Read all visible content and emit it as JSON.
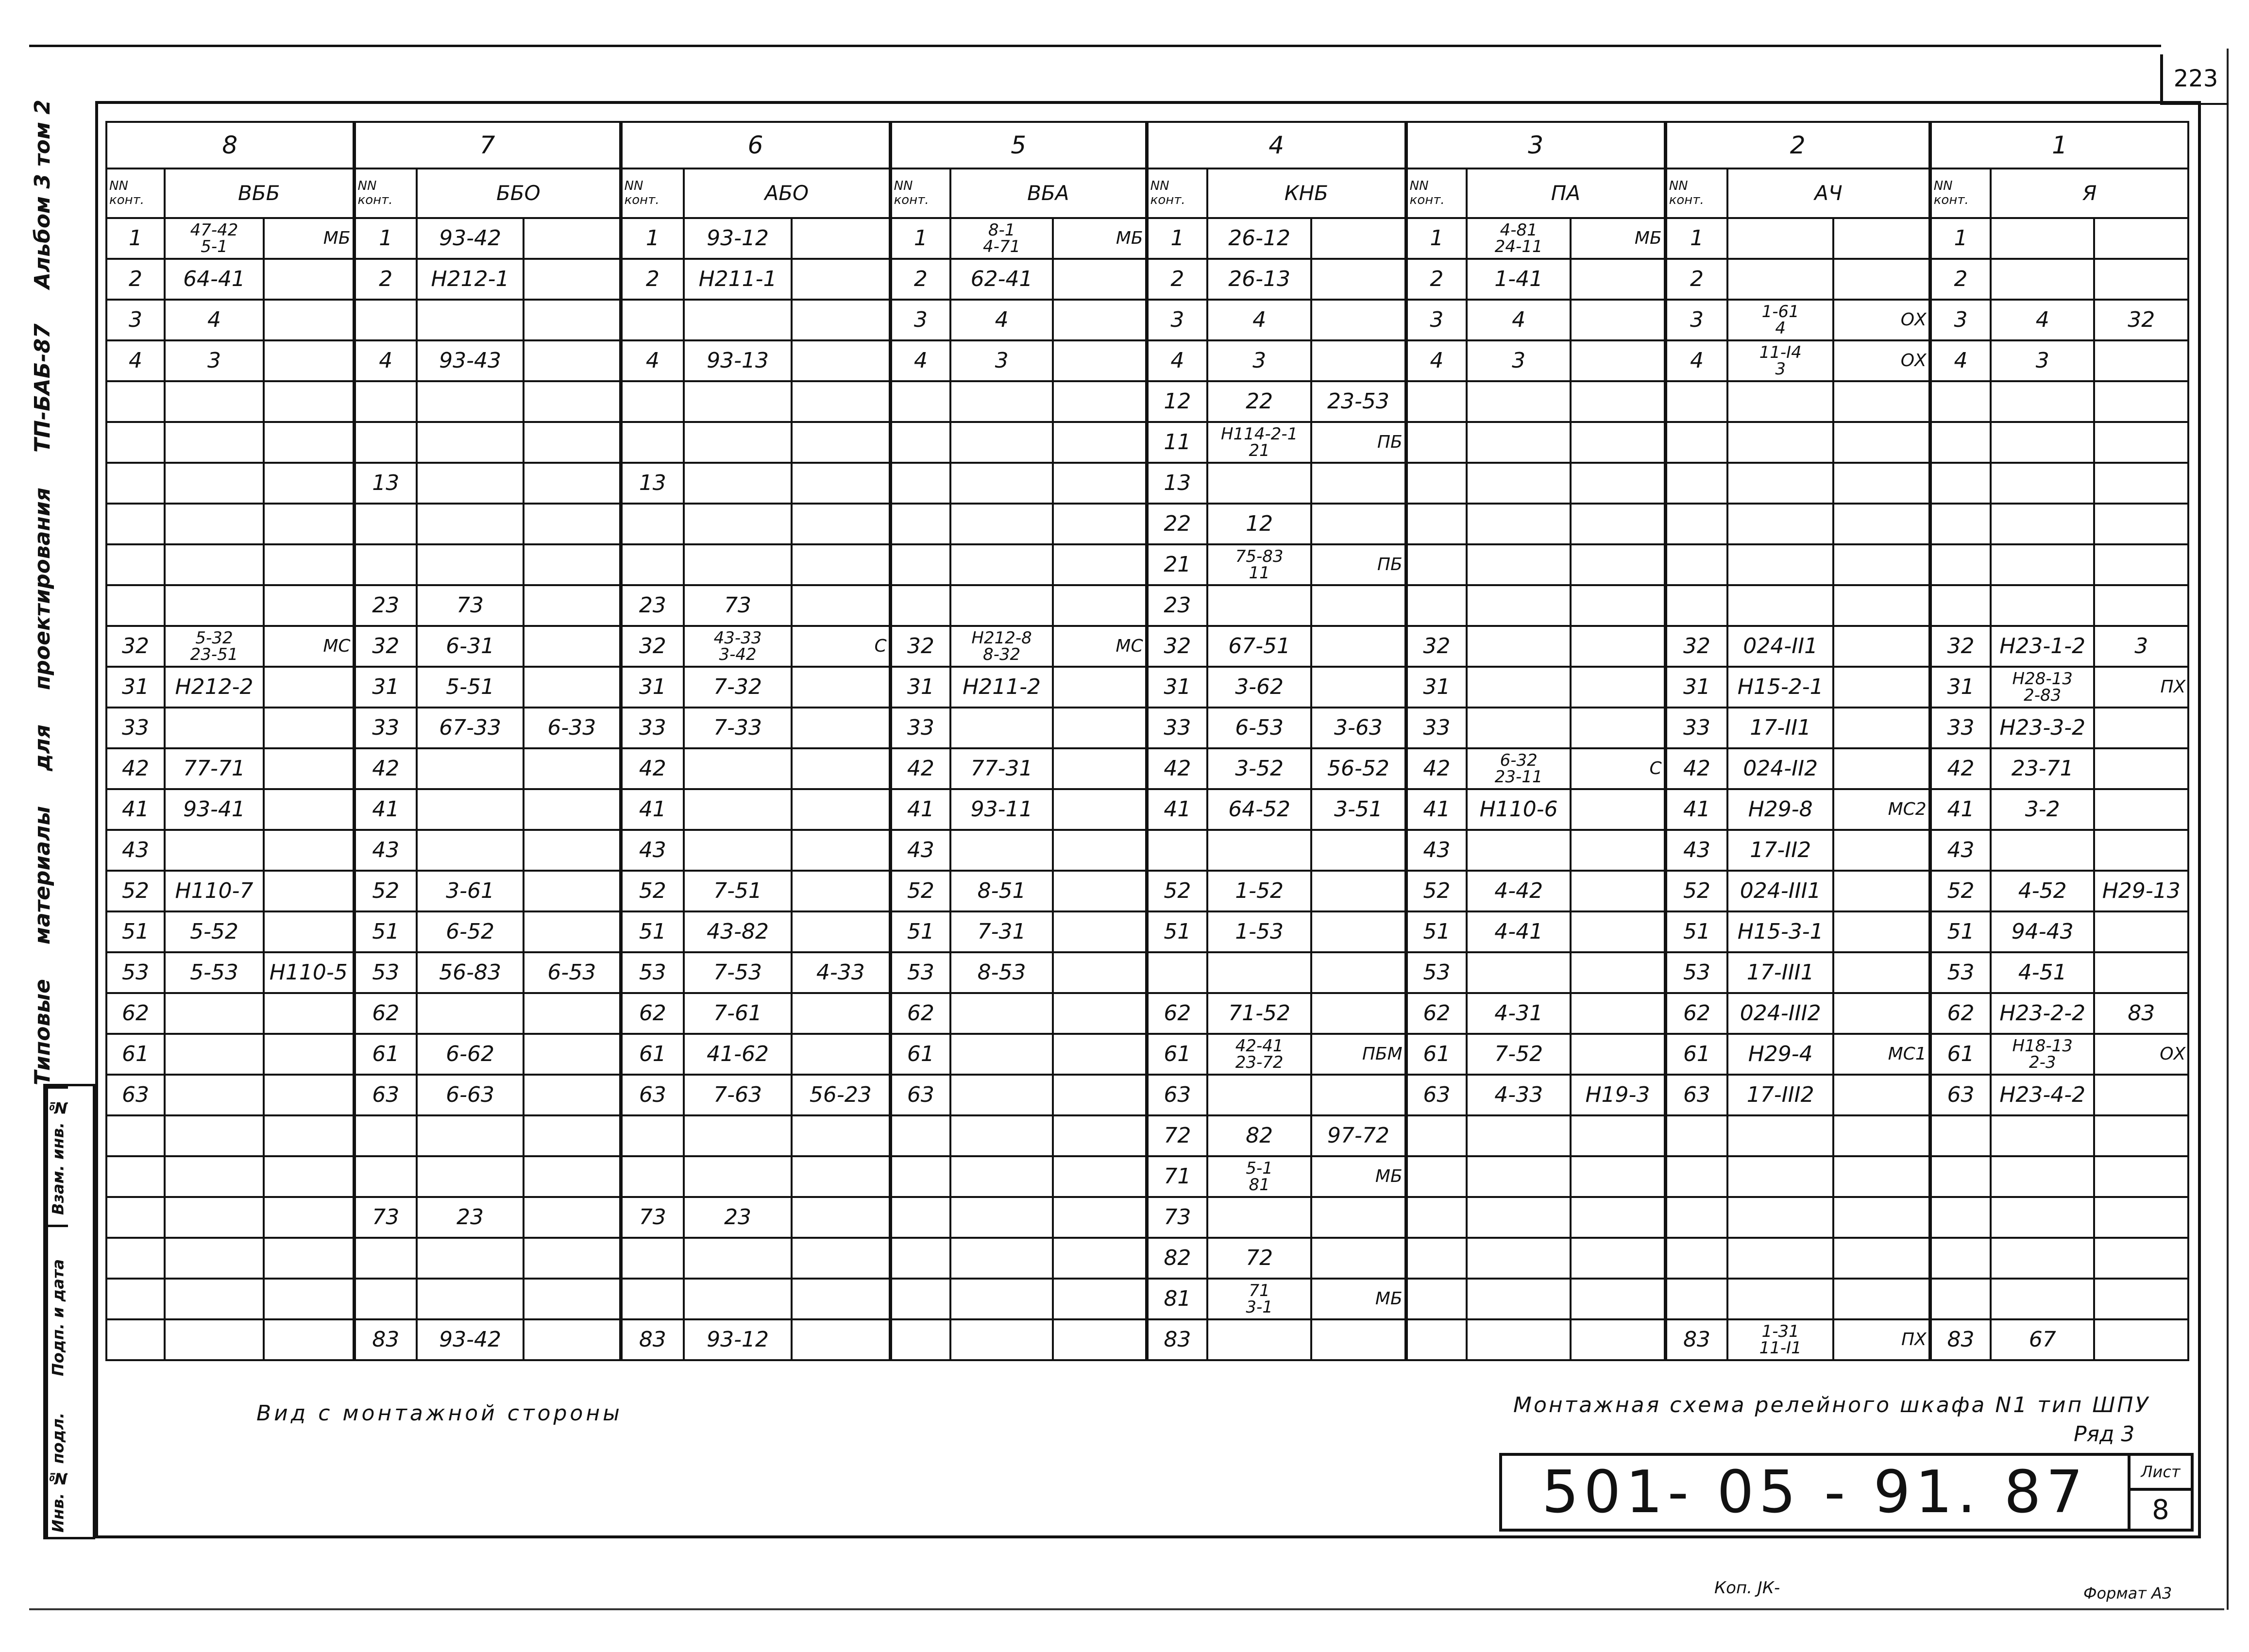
{
  "sheet_number_top": "223",
  "margin": {
    "parts": [
      "Типовые",
      "материалы",
      "для",
      "проектирования",
      "ТП-БАБ-87",
      "Альбом 3 том 2"
    ]
  },
  "stamp": {
    "replaces_inv": "Взам. инв. №",
    "signature_date": "Подп. и дата",
    "original_inv": "Инв. № подл."
  },
  "table": {
    "nn_header": "NN\nконт.",
    "groups": [
      {
        "number": "8",
        "name": "ВББ",
        "nn": [
          "1",
          "2",
          "3",
          "4",
          "",
          "",
          "",
          "",
          "",
          "",
          "32",
          "31",
          "33",
          "42",
          "41",
          "43",
          "52",
          "51",
          "53",
          "62",
          "61",
          "63",
          "",
          "",
          "",
          "",
          "",
          ""
        ],
        "a": [
          "47-42\n5-1",
          "64-41",
          "4",
          "3",
          "",
          "",
          "",
          "",
          "",
          "",
          "5-32\n23-51",
          "Н212-2",
          "",
          "77-71",
          "93-41",
          "",
          "Н110-7",
          "5-52",
          "5-53",
          "",
          "",
          "",
          "",
          "",
          "",
          "",
          "",
          ""
        ],
        "b": [
          "МБ",
          "",
          "",
          "",
          "",
          "",
          "",
          "",
          "",
          "",
          "МС",
          "",
          "",
          "",
          "",
          "",
          "",
          "",
          "Н110-5",
          "",
          "",
          "",
          "",
          "",
          "",
          "",
          "",
          ""
        ]
      },
      {
        "number": "7",
        "name": "ББО",
        "nn": [
          "1",
          "2",
          "",
          "4",
          "",
          "",
          "13",
          "",
          "",
          "23",
          "32",
          "31",
          "33",
          "42",
          "41",
          "43",
          "52",
          "51",
          "53",
          "62",
          "61",
          "63",
          "",
          "",
          "73",
          "",
          "",
          "83"
        ],
        "a": [
          "93-42",
          "Н212-1",
          "",
          "93-43",
          "",
          "",
          "",
          "",
          "",
          "73",
          "6-31",
          "5-51",
          "67-33",
          "",
          "",
          "",
          "3-61",
          "6-52",
          "56-83",
          "",
          "6-62",
          "6-63",
          "",
          "",
          "23",
          "",
          "",
          "93-42"
        ],
        "b": [
          "",
          "",
          "",
          "",
          "",
          "",
          "",
          "",
          "",
          "",
          "",
          "",
          "6-33",
          "",
          "",
          "",
          "",
          "",
          "6-53",
          "",
          "",
          "",
          "",
          "",
          "",
          "",
          "",
          ""
        ]
      },
      {
        "number": "6",
        "name": "АБО",
        "nn": [
          "1",
          "2",
          "",
          "4",
          "",
          "",
          "13",
          "",
          "",
          "23",
          "32",
          "31",
          "33",
          "42",
          "41",
          "43",
          "52",
          "51",
          "53",
          "62",
          "61",
          "63",
          "",
          "",
          "73",
          "",
          "",
          "83"
        ],
        "a": [
          "93-12",
          "Н211-1",
          "",
          "93-13",
          "",
          "",
          "",
          "",
          "",
          "73",
          "43-33\n3-42",
          "7-32",
          "7-33",
          "",
          "",
          "",
          "7-51",
          "43-82",
          "7-53",
          "7-61",
          "41-62",
          "7-63",
          "",
          "",
          "23",
          "",
          "",
          "93-12"
        ],
        "b": [
          "",
          "",
          "",
          "",
          "",
          "",
          "",
          "",
          "",
          "",
          "С",
          "",
          "",
          "",
          "",
          "",
          "",
          "",
          "4-33",
          "",
          "",
          "56-23",
          "",
          "",
          "",
          "",
          "",
          ""
        ]
      },
      {
        "number": "5",
        "name": "ВБА",
        "nn": [
          "1",
          "2",
          "3",
          "4",
          "",
          "",
          "",
          "",
          "",
          "",
          "32",
          "31",
          "33",
          "42",
          "41",
          "43",
          "52",
          "51",
          "53",
          "62",
          "61",
          "63",
          "",
          "",
          "",
          "",
          "",
          ""
        ],
        "a": [
          "8-1\n4-71",
          "62-41",
          "4",
          "3",
          "",
          "",
          "",
          "",
          "",
          "",
          "Н212-8\n8-32",
          "Н211-2",
          "",
          "77-31",
          "93-11",
          "",
          "8-51",
          "7-31",
          "8-53",
          "",
          "",
          "",
          "",
          "",
          "",
          "",
          "",
          ""
        ],
        "b": [
          "МБ",
          "",
          "",
          "",
          "",
          "",
          "",
          "",
          "",
          "",
          "МС",
          "",
          "",
          "",
          "",
          "",
          "",
          "",
          "",
          "",
          "",
          "",
          "",
          "",
          "",
          "",
          "",
          ""
        ]
      },
      {
        "number": "4",
        "name": "КНБ",
        "nn": [
          "1",
          "2",
          "3",
          "4",
          "12",
          "11",
          "13",
          "22",
          "21",
          "23",
          "32",
          "31",
          "33",
          "42",
          "41",
          "",
          "52",
          "51",
          "",
          "62",
          "61",
          "63",
          "72",
          "71",
          "73",
          "82",
          "81",
          "83"
        ],
        "a": [
          "26-12",
          "26-13",
          "4",
          "3",
          "22",
          "Н114-2-1\n21",
          "",
          "12",
          "75-83\n11",
          "",
          "67-51",
          "3-62",
          "6-53",
          "3-52",
          "64-52",
          "",
          "1-52",
          "1-53",
          "",
          "71-52",
          "42-41\n23-72",
          "",
          "82",
          "5-1\n81",
          "",
          "72",
          "71\n3-1",
          ""
        ],
        "b": [
          "",
          "",
          "",
          "",
          "23-53",
          "ПБ",
          "",
          "",
          "ПБ",
          "",
          "",
          "",
          "3-63",
          "56-52",
          "3-51",
          "",
          "",
          "",
          "",
          "",
          "ПБМ",
          "",
          "97-72",
          "МБ",
          "",
          "",
          "МБ",
          ""
        ]
      },
      {
        "number": "3",
        "name": "ПА",
        "nn": [
          "1",
          "2",
          "3",
          "4",
          "",
          "",
          "",
          "",
          "",
          "",
          "32",
          "31",
          "33",
          "42",
          "41",
          "43",
          "52",
          "51",
          "53",
          "62",
          "61",
          "63",
          "",
          "",
          "",
          "",
          "",
          ""
        ],
        "a": [
          "4-81\n24-11",
          "1-41",
          "4",
          "3",
          "",
          "",
          "",
          "",
          "",
          "",
          "",
          "",
          "",
          "6-32\n23-11",
          "Н110-6",
          "",
          "4-42",
          "4-41",
          "",
          "4-31",
          "7-52",
          "4-33",
          "",
          "",
          "",
          "",
          "",
          ""
        ],
        "b": [
          "МБ",
          "",
          "",
          "",
          "",
          "",
          "",
          "",
          "",
          "",
          "",
          "",
          "",
          "С",
          "",
          "",
          "",
          "",
          "",
          "",
          "",
          "Н19-3",
          "",
          "",
          "",
          "",
          "",
          ""
        ]
      },
      {
        "number": "2",
        "name": "АЧ",
        "nn": [
          "1",
          "2",
          "3",
          "4",
          "",
          "",
          "",
          "",
          "",
          "",
          "32",
          "31",
          "33",
          "42",
          "41",
          "43",
          "52",
          "51",
          "53",
          "62",
          "61",
          "63",
          "",
          "",
          "",
          "",
          "",
          "83"
        ],
        "a": [
          "",
          "",
          "1-61\n4",
          "11-I4\n3",
          "",
          "",
          "",
          "",
          "",
          "",
          "024-II1",
          "Н15-2-1",
          "17-II1",
          "024-II2",
          "Н29-8",
          "17-II2",
          "024-III1",
          "Н15-3-1",
          "17-III1",
          "024-III2",
          "Н29-4",
          "17-III2",
          "",
          "",
          "",
          "",
          "",
          "1-31\n11-I1"
        ],
        "b": [
          "",
          "",
          "ОХ",
          "ОХ",
          "",
          "",
          "",
          "",
          "",
          "",
          "",
          "",
          "",
          "",
          "МС2",
          "",
          "",
          "",
          "",
          "",
          "МС1",
          "",
          "",
          "",
          "",
          "",
          "",
          "ПХ"
        ]
      },
      {
        "number": "1",
        "name": "Я",
        "nn": [
          "1",
          "2",
          "3",
          "4",
          "",
          "",
          "",
          "",
          "",
          "",
          "32",
          "31",
          "33",
          "42",
          "41",
          "43",
          "52",
          "51",
          "53",
          "62",
          "61",
          "63",
          "",
          "",
          "",
          "",
          "",
          "83"
        ],
        "a": [
          "",
          "",
          "4",
          "3",
          "",
          "",
          "",
          "",
          "",
          "",
          "Н23-1-2",
          "Н28-13\n2-83",
          "Н23-3-2",
          "23-71",
          "3-2",
          "",
          "4-52",
          "94-43",
          "4-51",
          "Н23-2-2",
          "Н18-13\n2-3",
          "Н23-4-2",
          "",
          "",
          "",
          "",
          "",
          "67"
        ],
        "b": [
          "",
          "",
          "32",
          "",
          "",
          "",
          "",
          "",
          "",
          "",
          "3",
          "ПХ",
          "",
          "",
          "",
          "",
          "Н29-13",
          "",
          "",
          "83",
          "ОХ",
          "",
          "",
          "",
          "",
          "",
          "",
          ""
        ]
      }
    ]
  },
  "captions": {
    "view": "Вид с монтажной стороны",
    "title": "Монтажная схема релейного шкафа N1 тип ШПУ",
    "row": "Ряд 3"
  },
  "title_block": {
    "designation": "501- 05 - 91. 87",
    "sheet_label": "Лист",
    "sheet_value": "8"
  },
  "footer": {
    "copy": "Коп. ЈК-",
    "format": "Формат А3"
  }
}
